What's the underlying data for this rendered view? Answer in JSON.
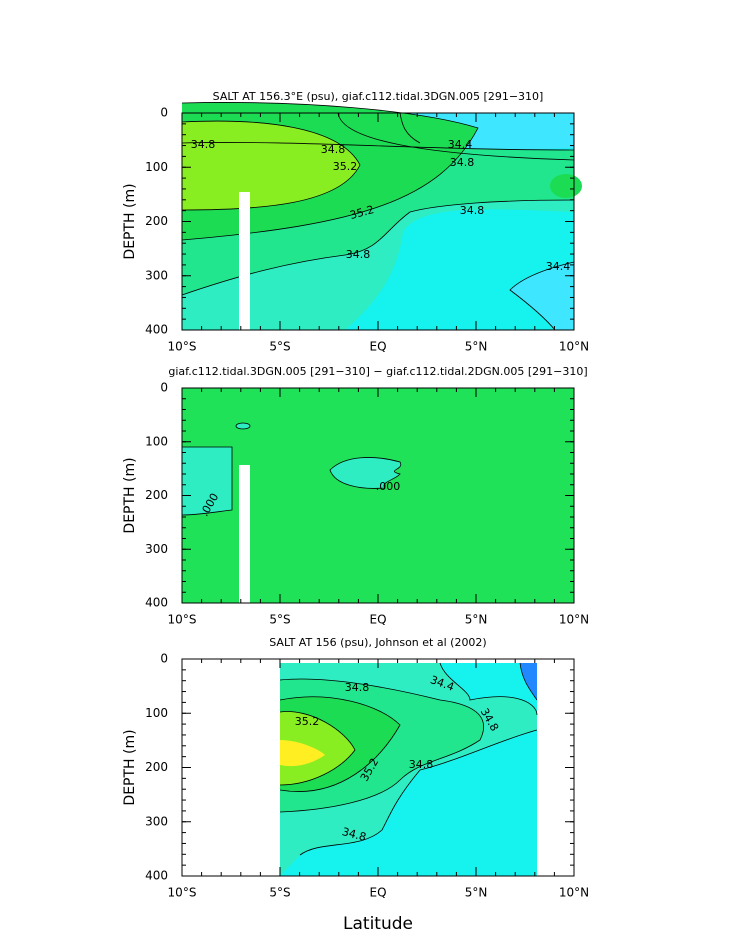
{
  "chart_data": [
    {
      "type": "contour",
      "title": "SALT AT 156.3°E (psu), giaf.c112.tidal.3DGN.005 [291−310]",
      "ylabel": "DEPTH (m)",
      "xlim": [
        -10,
        10
      ],
      "xticks": [
        {
          "value": -10,
          "label": "10°S"
        },
        {
          "value": -5,
          "label": "5°S"
        },
        {
          "value": 0,
          "label": "EQ"
        },
        {
          "value": 5,
          "label": "5°N"
        },
        {
          "value": 10,
          "label": "10°N"
        }
      ],
      "ylim": [
        400,
        0
      ],
      "yticks": [
        0,
        100,
        200,
        300,
        400
      ],
      "contour_labels": [
        "34.8",
        "34.8",
        "34.4",
        "34.8",
        "35.2",
        "35.2",
        "34.8",
        "34.8",
        "34.4"
      ]
    },
    {
      "type": "contour",
      "title": "giaf.c112.tidal.3DGN.005 [291−310] − giaf.c112.tidal.2DGN.005 [291−310]",
      "ylabel": "DEPTH (m)",
      "xlim": [
        -10,
        10
      ],
      "xticks": [
        {
          "value": -10,
          "label": "10°S"
        },
        {
          "value": -5,
          "label": "5°S"
        },
        {
          "value": 0,
          "label": "EQ"
        },
        {
          "value": 5,
          "label": "5°N"
        },
        {
          "value": 10,
          "label": "10°N"
        }
      ],
      "ylim": [
        400,
        0
      ],
      "yticks": [
        0,
        100,
        200,
        300,
        400
      ],
      "contour_labels": [
        ".000",
        ".000"
      ]
    },
    {
      "type": "contour",
      "title": "SALT AT 156 (psu), Johnson et al (2002)",
      "ylabel": "DEPTH (m)",
      "xlabel": "Latitude",
      "xlim": [
        -10,
        10
      ],
      "xticks": [
        {
          "value": -10,
          "label": "10°S"
        },
        {
          "value": -5,
          "label": "5°S"
        },
        {
          "value": 0,
          "label": "EQ"
        },
        {
          "value": 5,
          "label": "5°N"
        },
        {
          "value": 10,
          "label": "10°N"
        }
      ],
      "ylim": [
        400,
        0
      ],
      "yticks": [
        0,
        100,
        200,
        300,
        400
      ],
      "contour_labels": [
        "34.8",
        "34.4",
        "35.2",
        "34.8",
        "35.2",
        "34.8",
        "34.8"
      ]
    }
  ]
}
